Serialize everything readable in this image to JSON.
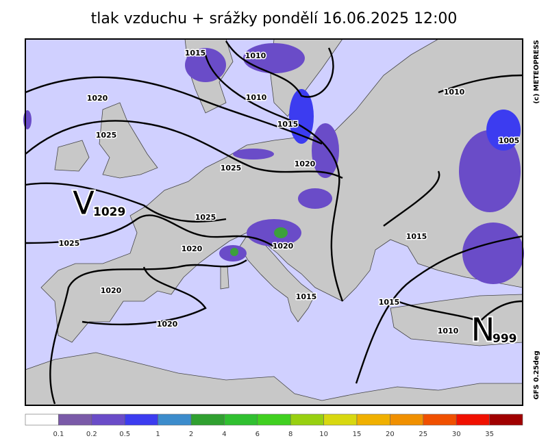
{
  "title": "tlak vzduchu + srážky pondělí 16.06.2025 12:00",
  "credit": "(c) METEOPRESS",
  "model": "GFS 0.25deg",
  "isobar_labels": [
    "1015",
    "1010",
    "1010",
    "1015",
    "1020",
    "1025",
    "1025",
    "1020",
    "1010",
    "1005",
    "1025",
    "1025",
    "1020",
    "1020",
    "1015",
    "1020",
    "1015",
    "1015",
    "1020",
    "1010"
  ],
  "centers": [
    {
      "letter": "V",
      "value": "1029"
    },
    {
      "letter": "N",
      "value": "999"
    }
  ],
  "legend": {
    "colors": [
      "#ffffff",
      "#7a5aa8",
      "#6a4cc8",
      "#3c3cf0",
      "#3c8ccc",
      "#30a030",
      "#30c030",
      "#40d020",
      "#98d010",
      "#d8d810",
      "#f0b000",
      "#f09000",
      "#f05000",
      "#f01000",
      "#a00000"
    ],
    "labels": [
      0.1,
      0.2,
      0.5,
      1,
      2,
      4,
      6,
      8,
      10,
      15,
      20,
      25,
      30,
      35
    ]
  }
}
